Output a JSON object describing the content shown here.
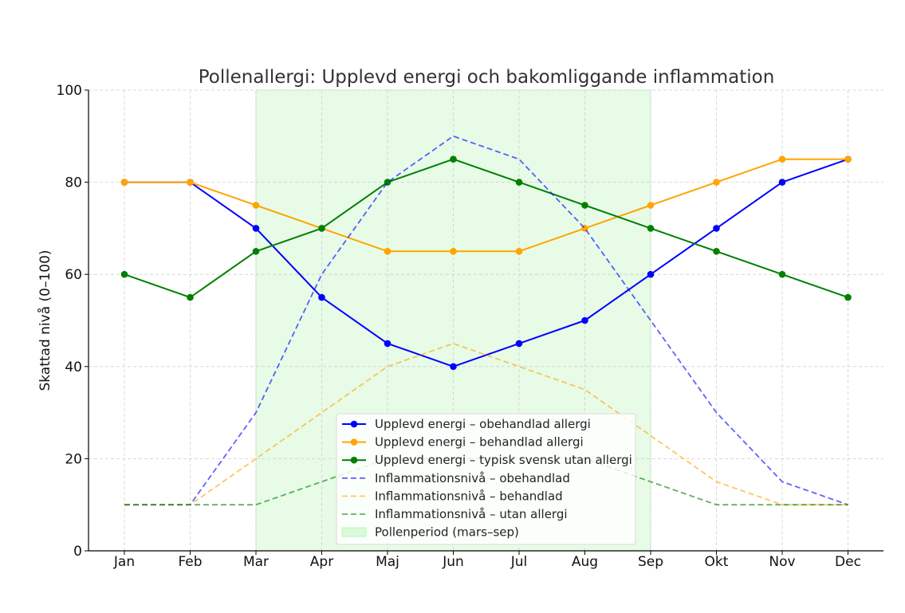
{
  "chart_data": {
    "type": "line",
    "title": "Pollenallergi: Upplevd energi och bakomliggande inflammation",
    "xlabel": "",
    "ylabel": "Skattad nivå (0–100)",
    "categories": [
      "Jan",
      "Feb",
      "Mar",
      "Apr",
      "Maj",
      "Jun",
      "Jul",
      "Aug",
      "Sep",
      "Okt",
      "Nov",
      "Dec"
    ],
    "ylim": [
      0,
      100
    ],
    "yticks": [
      0,
      20,
      40,
      60,
      80,
      100
    ],
    "grid": true,
    "legend_position": "bottom-center",
    "shaded_region": {
      "label": "Pollenperiod (mars–sep)",
      "from": "Mar",
      "to": "Sep",
      "color": "#90ee90"
    },
    "series": [
      {
        "name": "Upplevd energi – obehandlad allergi",
        "style": "solid-marker",
        "color": "#0000ff",
        "values": [
          80,
          80,
          70,
          55,
          45,
          40,
          45,
          50,
          60,
          70,
          80,
          85
        ]
      },
      {
        "name": "Upplevd energi – behandlad allergi",
        "style": "solid-marker",
        "color": "#ffa500",
        "values": [
          80,
          80,
          75,
          70,
          65,
          65,
          65,
          70,
          75,
          80,
          85,
          85
        ]
      },
      {
        "name": "Upplevd energi – typisk svensk utan allergi",
        "style": "solid-marker",
        "color": "#008000",
        "values": [
          60,
          55,
          65,
          70,
          80,
          85,
          80,
          75,
          70,
          65,
          60,
          55
        ]
      },
      {
        "name": "Inflammationsnivå – obehandlad",
        "style": "dashed",
        "color": "#0000ff",
        "values": [
          10,
          10,
          30,
          60,
          80,
          90,
          85,
          70,
          50,
          30,
          15,
          10
        ]
      },
      {
        "name": "Inflammationsnivå – behandlad",
        "style": "dashed",
        "color": "#ffa500",
        "values": [
          10,
          10,
          20,
          30,
          40,
          45,
          40,
          35,
          25,
          15,
          10,
          10
        ]
      },
      {
        "name": "Inflammationsnivå – utan allergi",
        "style": "dashed",
        "color": "#008000",
        "values": [
          10,
          10,
          10,
          15,
          20,
          20,
          20,
          20,
          15,
          10,
          10,
          10
        ]
      }
    ]
  }
}
